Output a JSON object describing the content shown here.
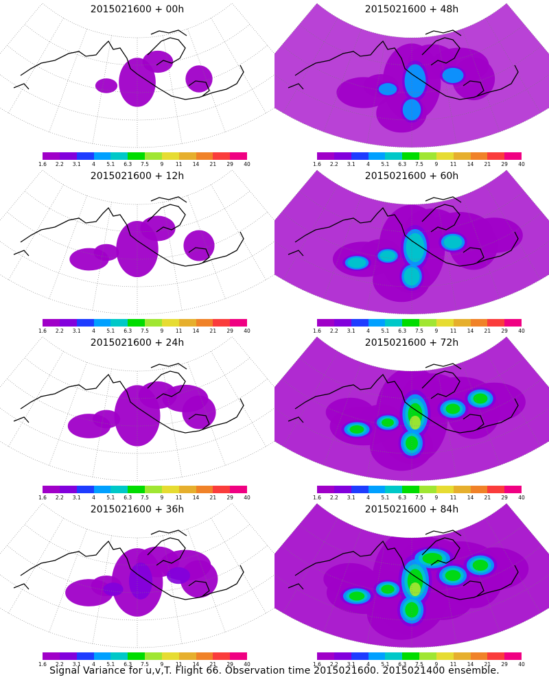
{
  "caption": "Signal Variance for u,v,T. Flight 66. Observation time 2015021600. 2015021400 ensemble.",
  "chart_data": {
    "type": "heatmap",
    "colorbar": {
      "levels": [
        "1.6",
        "2.2",
        "3.1",
        "4",
        "5.1",
        "6.3",
        "7.5",
        "9",
        "11",
        "14",
        "21",
        "29",
        "40"
      ],
      "colors": [
        "#a000c8",
        "#8200dc",
        "#1e3cff",
        "#00a0ff",
        "#00c8c8",
        "#00dc00",
        "#a0e632",
        "#e6dc32",
        "#e6af2d",
        "#f08228",
        "#fa3c3c",
        "#f00082"
      ]
    },
    "panels": [
      {
        "title": "2015021600 + 00h",
        "intensity": 0.15
      },
      {
        "title": "2015021600 + 48h",
        "intensity": 0.55
      },
      {
        "title": "2015021600 + 12h",
        "intensity": 0.25
      },
      {
        "title": "2015021600 + 60h",
        "intensity": 0.7
      },
      {
        "title": "2015021600 + 24h",
        "intensity": 0.32
      },
      {
        "title": "2015021600 + 72h",
        "intensity": 0.82
      },
      {
        "title": "2015021600 + 36h",
        "intensity": 0.42
      },
      {
        "title": "2015021600 + 84h",
        "intensity": 0.95
      }
    ]
  }
}
